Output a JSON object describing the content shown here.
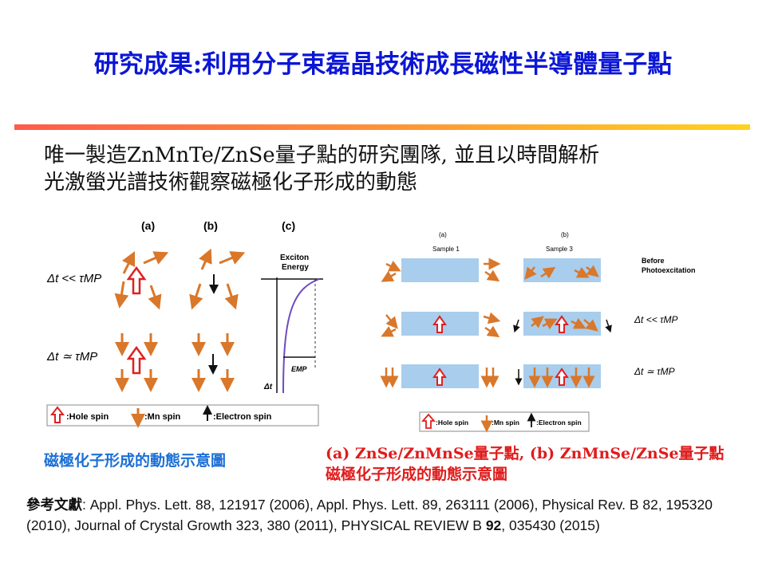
{
  "title": {
    "lead": "研究成果:",
    "rest": "利用分子束磊晶技術成長磁性半導體量子點"
  },
  "intro": {
    "line1": "唯一製造ZnMnTe/ZnSe量子點的研究團隊, 並且以時間解析",
    "line2": "光激螢光譜技術觀察磁極化子形成的動態"
  },
  "left_figure": {
    "panel_a": "(a)",
    "panel_b": "(b)",
    "panel_c": "(c)",
    "row1": "Δt << τMP",
    "row2": "Δt ≃ τMP",
    "axis_title_1": "Exciton",
    "axis_title_2": "Energy",
    "emp": "EMP",
    "dt": "Δt",
    "legend": {
      "hole": ":Hole spin",
      "mn": ":Mn spin",
      "electron": ":Electron spin"
    }
  },
  "right_figure": {
    "panel_a": "(a)",
    "panel_b": "(b)",
    "sample1": "Sample 1",
    "sample3": "Sample 3",
    "before1": "Before",
    "before2": "Photoexcitation",
    "row1": "Δt << τMP",
    "row2": "Δt ≃ τMP",
    "legend": {
      "hole": ":Hole spin",
      "mn": ":Mn spin",
      "electron": ":Electron spin"
    }
  },
  "captions": {
    "left": "磁極化子形成的動態示意圖",
    "right_line1": "(a) ZnSe/ZnMnSe量子點, (b) ZnMnSe/ZnSe量子點",
    "right_line2": "磁極化子形成的動態示意圖"
  },
  "references": {
    "label": "參考文獻",
    "text1": ": Appl. Phys. Lett. 88, 121917 (2006), Appl. Phys. Lett. 89, 263111 (2006), Physical Rev. B 82, 195320 (2010), Journal of Crystal Growth 323, 380 (2011), PHYSICAL REVIEW B ",
    "vol": "92",
    "text2": ", 035430 (2015)"
  },
  "colors": {
    "title": "#0b16d6",
    "caption_left": "#1c6fd6",
    "caption_right": "#e01b1b",
    "mn_arrow": "#d9772a",
    "hole_arrow": "#e02020",
    "sample_box": "#a9cdec"
  }
}
